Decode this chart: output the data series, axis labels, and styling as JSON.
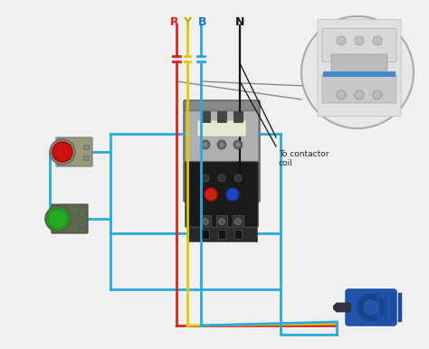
{
  "bg_color": "#f0f0f0",
  "wire_blue": "#29aadd",
  "wire_red": "#dd2222",
  "wire_yellow": "#ddcc00",
  "wire_black": "#111111",
  "label_R": "R",
  "label_Y": "Y",
  "label_B": "B",
  "label_N": "N",
  "label_coil": "To contactor\ncoil",
  "text_color_R": "#dd2222",
  "text_color_Y": "#bbaa00",
  "text_color_B": "#1177cc",
  "text_color_N": "#111111",
  "lw_wire": 2.0
}
